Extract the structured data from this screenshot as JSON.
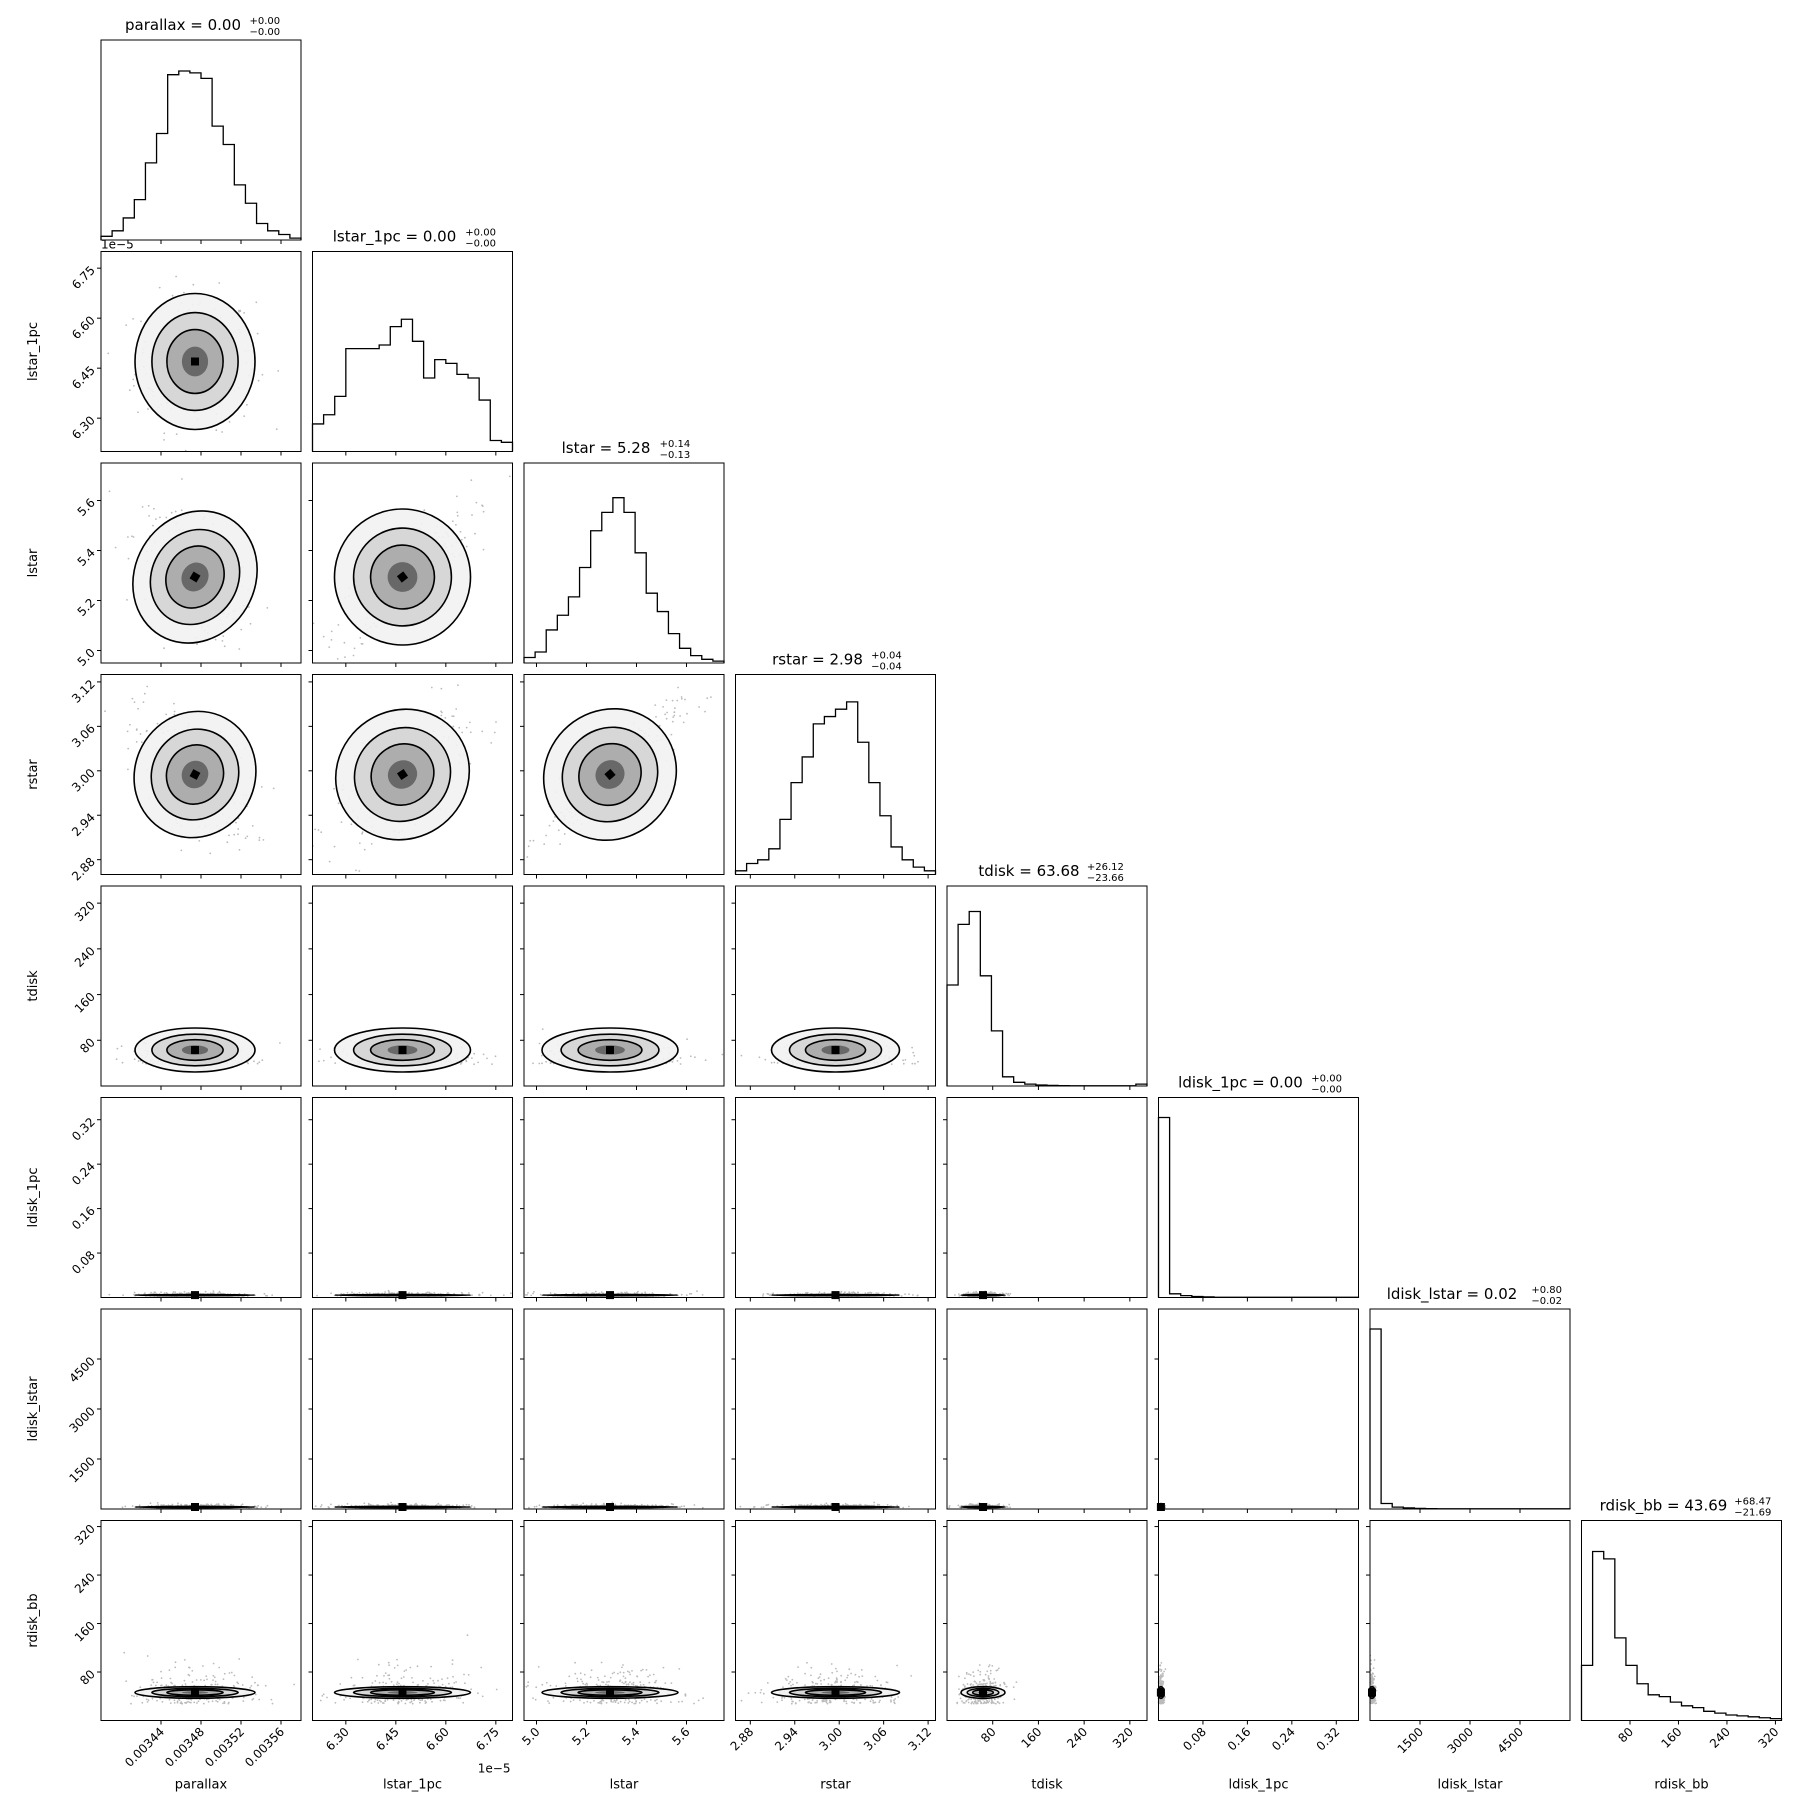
{
  "chart_data": {
    "type": "corner",
    "parameters": [
      {
        "name": "parallax",
        "title_label": "parallax",
        "median": "0.00",
        "plus": "+0.00",
        "minus": "−0.00",
        "lim": [
          0.00338,
          0.00358
        ],
        "ticks": [
          0.00344,
          0.00348,
          0.00352,
          0.00356
        ],
        "tick_labels": [
          "0.00344",
          "0.00348",
          "0.00352",
          "0.00356"
        ],
        "offset": "",
        "hist": [
          0.02,
          0.05,
          0.12,
          0.22,
          0.42,
          0.58,
          0.9,
          0.92,
          0.91,
          0.88,
          0.62,
          0.52,
          0.3,
          0.2,
          0.09,
          0.05,
          0.03,
          0.01
        ]
      },
      {
        "name": "lstar_1pc",
        "title_label": "lstar_1pc",
        "median": "0.00",
        "plus": "+0.00",
        "minus": "−0.00",
        "lim": [
          6.2,
          6.8
        ],
        "ticks": [
          6.3,
          6.45,
          6.6,
          6.75
        ],
        "tick_labels": [
          "6.30",
          "6.45",
          "6.60",
          "6.75"
        ],
        "offset": "1e−5",
        "hist": [
          0.15,
          0.2,
          0.3,
          0.56,
          0.56,
          0.56,
          0.58,
          0.68,
          0.72,
          0.6,
          0.4,
          0.5,
          0.48,
          0.42,
          0.4,
          0.28,
          0.06,
          0.05
        ]
      },
      {
        "name": "lstar",
        "title_label": "lstar",
        "median": "5.28",
        "plus": "+0.14",
        "minus": "−0.13",
        "lim": [
          4.95,
          5.75
        ],
        "ticks": [
          5.0,
          5.2,
          5.4,
          5.6
        ],
        "tick_labels": [
          "5.0",
          "5.2",
          "5.4",
          "5.6"
        ],
        "offset": "",
        "hist": [
          0.03,
          0.06,
          0.18,
          0.26,
          0.36,
          0.52,
          0.72,
          0.82,
          0.9,
          0.82,
          0.6,
          0.38,
          0.28,
          0.16,
          0.08,
          0.04,
          0.02,
          0.01
        ]
      },
      {
        "name": "rstar",
        "title_label": "rstar",
        "median": "2.98",
        "plus": "+0.04",
        "minus": "−0.04",
        "lim": [
          2.86,
          3.13
        ],
        "ticks": [
          2.88,
          2.94,
          3.0,
          3.06,
          3.12
        ],
        "tick_labels": [
          "2.88",
          "2.94",
          "3.00",
          "3.06",
          "3.12"
        ],
        "offset": "",
        "hist": [
          0.02,
          0.06,
          0.08,
          0.14,
          0.3,
          0.5,
          0.64,
          0.82,
          0.86,
          0.9,
          0.94,
          0.72,
          0.5,
          0.32,
          0.15,
          0.08,
          0.04,
          0.02
        ]
      },
      {
        "name": "tdisk",
        "title_label": "tdisk",
        "median": "63.68",
        "plus": "+26.12",
        "minus": "−23.66",
        "lim": [
          0,
          350
        ],
        "ticks": [
          80,
          160,
          240,
          320
        ],
        "tick_labels": [
          "80",
          "160",
          "240",
          "320"
        ],
        "offset": "",
        "hist": [
          0.55,
          0.88,
          0.95,
          0.6,
          0.3,
          0.05,
          0.02,
          0.01,
          0.005,
          0.003,
          0.002,
          0.001,
          0.001,
          0.001,
          0.001,
          0.001,
          0.001,
          0.01
        ]
      },
      {
        "name": "ldisk_1pc",
        "title_label": "ldisk_1pc",
        "median": "0.00",
        "plus": "+0.00",
        "minus": "−0.00",
        "lim": [
          0,
          0.36
        ],
        "ticks": [
          0.08,
          0.16,
          0.24,
          0.32
        ],
        "tick_labels": [
          "0.08",
          "0.16",
          "0.24",
          "0.32"
        ],
        "offset": "",
        "hist": [
          0.98,
          0.02,
          0.01,
          0.005,
          0.003,
          0.001,
          0.001,
          0.001,
          0.001,
          0.001,
          0.001,
          0.001,
          0.001,
          0.001,
          0.001,
          0.001,
          0.001,
          0.001
        ]
      },
      {
        "name": "ldisk_lstar",
        "title_label": "ldisk_lstar",
        "median": "0.02",
        "plus": "+0.80",
        "minus": "−0.02",
        "lim": [
          0,
          6000
        ],
        "ticks": [
          1500,
          3000,
          4500
        ],
        "tick_labels": [
          "1500",
          "3000",
          "4500"
        ],
        "offset": "",
        "hist": [
          0.98,
          0.03,
          0.01,
          0.006,
          0.003,
          0.002,
          0.001,
          0.001,
          0.001,
          0.001,
          0.001,
          0.001,
          0.001,
          0.001,
          0.001,
          0.001,
          0.001,
          0.001
        ]
      },
      {
        "name": "rdisk_bb",
        "title_label": "rdisk_bb",
        "median": "43.69",
        "plus": "+68.47",
        "minus": "−21.69",
        "lim": [
          0,
          330
        ],
        "ticks": [
          80,
          160,
          240,
          320
        ],
        "tick_labels": [
          "80",
          "160",
          "240",
          "320"
        ],
        "offset": "",
        "hist": [
          0.3,
          0.92,
          0.88,
          0.45,
          0.3,
          0.2,
          0.14,
          0.13,
          0.1,
          0.08,
          0.07,
          0.05,
          0.04,
          0.03,
          0.025,
          0.02,
          0.015,
          0.01
        ]
      }
    ],
    "correlations": {
      "2,0": -0.6,
      "2,1": 0.78,
      "3,0": -0.55,
      "3,1": 0.68,
      "3,2": 0.88
    },
    "contour_levels": 4,
    "scatter_points": true
  }
}
